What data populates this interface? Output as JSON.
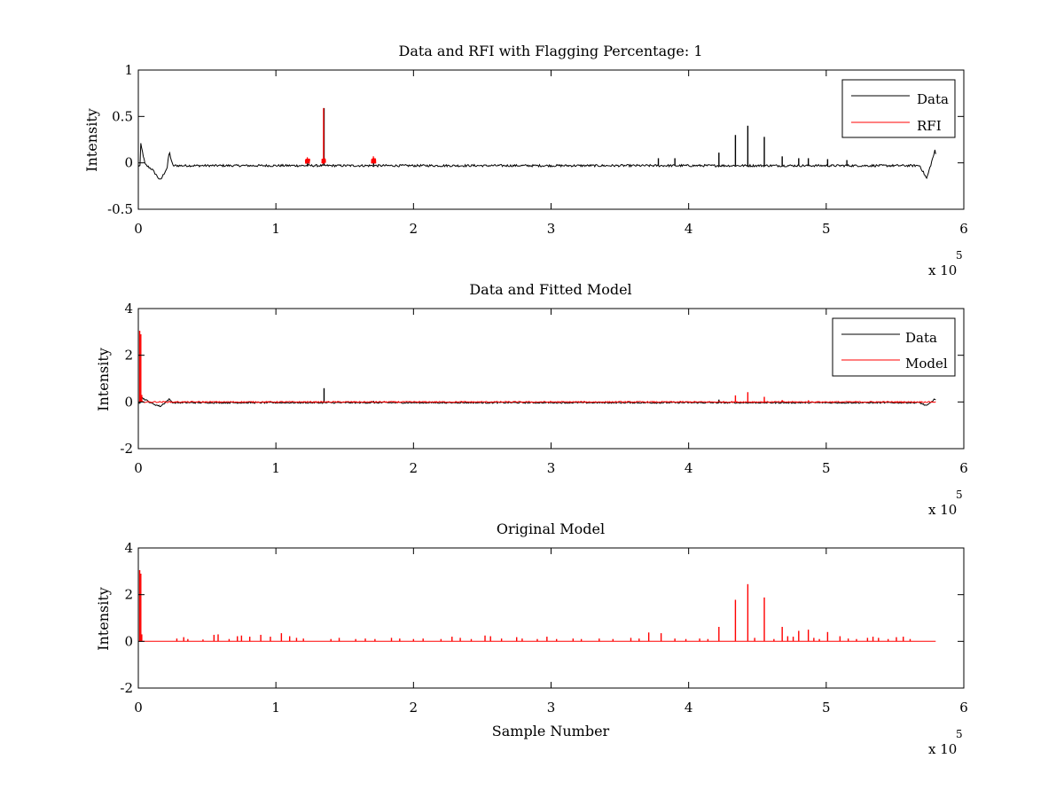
{
  "chart_data": [
    {
      "type": "line",
      "title": "Data and RFI with Flagging Percentage: 1",
      "xlabel": "",
      "ylabel": "Intensity",
      "xlim": [
        0,
        600000
      ],
      "ylim": [
        -0.5,
        1
      ],
      "xticks": [
        0,
        1,
        2,
        3,
        4,
        5,
        6
      ],
      "yticks": [
        -0.5,
        0,
        0.5,
        1
      ],
      "ytick_labels": [
        "-0.5",
        "0",
        "0.5",
        "1"
      ],
      "x_multiplier": "x 10",
      "x_multiplier_exp": "5",
      "legend_position": "top-right",
      "series": [
        {
          "name": "Data",
          "color": "#000000",
          "baseline": -0.03,
          "noise": 0.012,
          "features": [
            {
              "x": 1500,
              "y": 0.22
            },
            {
              "x": 5000,
              "y": -0.02
            },
            {
              "x": 10000,
              "y": -0.07
            },
            {
              "x": 16000,
              "y": -0.19
            },
            {
              "x": 21000,
              "y": -0.05
            },
            {
              "x": 22500,
              "y": 0.12
            },
            {
              "x": 25000,
              "y": -0.03
            }
          ],
          "tail": [
            {
              "x": 568000,
              "y": -0.03
            },
            {
              "x": 573000,
              "y": -0.17
            },
            {
              "x": 579000,
              "y": 0.13
            },
            {
              "x": 581000,
              "y": 0.0
            }
          ],
          "spikes": [
            {
              "x": 135000,
              "y": 0.59
            },
            {
              "x": 123000,
              "y": 0.02
            },
            {
              "x": 171000,
              "y": 0.04
            },
            {
              "x": 378000,
              "y": 0.05
            },
            {
              "x": 390000,
              "y": 0.05
            },
            {
              "x": 422000,
              "y": 0.11
            },
            {
              "x": 434000,
              "y": 0.3
            },
            {
              "x": 443000,
              "y": 0.4
            },
            {
              "x": 455000,
              "y": 0.28
            },
            {
              "x": 468000,
              "y": 0.07
            },
            {
              "x": 480000,
              "y": 0.05
            },
            {
              "x": 487000,
              "y": 0.05
            },
            {
              "x": 501000,
              "y": 0.04
            },
            {
              "x": 515000,
              "y": 0.03
            }
          ]
        },
        {
          "name": "RFI",
          "color": "#ff0000",
          "segments": [
            {
              "from": 121500,
              "to": 124500,
              "level": 0.02,
              "spike": 0.06
            },
            {
              "from": 133500,
              "to": 136000,
              "level": 0.02,
              "spike": 0.59
            },
            {
              "from": 169500,
              "to": 172500,
              "level": 0.02,
              "spike": 0.07
            }
          ]
        }
      ]
    },
    {
      "type": "line",
      "title": "Data and Fitted Model",
      "xlabel": "",
      "ylabel": "Intensity",
      "xlim": [
        0,
        600000
      ],
      "ylim": [
        -2,
        4
      ],
      "xticks": [
        0,
        1,
        2,
        3,
        4,
        5,
        6
      ],
      "yticks": [
        -2,
        0,
        2,
        4
      ],
      "ytick_labels": [
        "-2",
        "0",
        "2",
        "4"
      ],
      "x_multiplier": "x 10",
      "x_multiplier_exp": "5",
      "legend_position": "top-right",
      "series": [
        {
          "name": "Data",
          "color": "#000000",
          "baseline": -0.03,
          "noise": 0.03,
          "features": [
            {
              "x": 1500,
              "y": 0.22
            },
            {
              "x": 10000,
              "y": -0.07
            },
            {
              "x": 16000,
              "y": -0.19
            },
            {
              "x": 22500,
              "y": 0.12
            },
            {
              "x": 25000,
              "y": -0.03
            }
          ],
          "tail": [
            {
              "x": 568000,
              "y": -0.03
            },
            {
              "x": 573000,
              "y": -0.17
            },
            {
              "x": 579000,
              "y": 0.13
            },
            {
              "x": 581000,
              "y": 0.0
            }
          ],
          "spikes": [
            {
              "x": 135000,
              "y": 0.59
            },
            {
              "x": 171000,
              "y": 0.05
            },
            {
              "x": 422000,
              "y": 0.1
            }
          ]
        },
        {
          "name": "Model",
          "color": "#ff0000",
          "baseline": 0.0,
          "noise": 0.025,
          "spikes": [
            {
              "x": 1000,
              "y": 3.05
            },
            {
              "x": 1800,
              "y": 2.9
            },
            {
              "x": 2500,
              "y": 0.3
            },
            {
              "x": 434000,
              "y": 0.28
            },
            {
              "x": 443000,
              "y": 0.42
            },
            {
              "x": 455000,
              "y": 0.22
            },
            {
              "x": 468000,
              "y": 0.08
            },
            {
              "x": 487000,
              "y": 0.07
            }
          ]
        }
      ]
    },
    {
      "type": "line",
      "title": "Original Model",
      "xlabel": "Sample Number",
      "ylabel": "Intensity",
      "xlim": [
        0,
        600000
      ],
      "ylim": [
        -2,
        4
      ],
      "xticks": [
        0,
        1,
        2,
        3,
        4,
        5,
        6
      ],
      "yticks": [
        -2,
        0,
        2,
        4
      ],
      "ytick_labels": [
        "-2",
        "0",
        "2",
        "4"
      ],
      "x_multiplier": "x 10",
      "x_multiplier_exp": "5",
      "series": [
        {
          "color": "#ff0000",
          "baseline": 0.0,
          "noise": 0,
          "xend": 580000,
          "spikes": [
            {
              "x": 1000,
              "y": 3.05
            },
            {
              "x": 1800,
              "y": 2.9
            },
            {
              "x": 2500,
              "y": 0.3
            },
            {
              "x": 28000,
              "y": 0.12
            },
            {
              "x": 33000,
              "y": 0.18
            },
            {
              "x": 36000,
              "y": 0.1
            },
            {
              "x": 47000,
              "y": 0.08
            },
            {
              "x": 55000,
              "y": 0.28
            },
            {
              "x": 58000,
              "y": 0.3
            },
            {
              "x": 66000,
              "y": 0.1
            },
            {
              "x": 72000,
              "y": 0.22
            },
            {
              "x": 75000,
              "y": 0.25
            },
            {
              "x": 81000,
              "y": 0.2
            },
            {
              "x": 89000,
              "y": 0.28
            },
            {
              "x": 96000,
              "y": 0.2
            },
            {
              "x": 104000,
              "y": 0.35
            },
            {
              "x": 110000,
              "y": 0.22
            },
            {
              "x": 115000,
              "y": 0.15
            },
            {
              "x": 120000,
              "y": 0.12
            },
            {
              "x": 140000,
              "y": 0.1
            },
            {
              "x": 146000,
              "y": 0.15
            },
            {
              "x": 158000,
              "y": 0.1
            },
            {
              "x": 165000,
              "y": 0.12
            },
            {
              "x": 172000,
              "y": 0.1
            },
            {
              "x": 184000,
              "y": 0.15
            },
            {
              "x": 190000,
              "y": 0.12
            },
            {
              "x": 200000,
              "y": 0.1
            },
            {
              "x": 207000,
              "y": 0.12
            },
            {
              "x": 220000,
              "y": 0.1
            },
            {
              "x": 228000,
              "y": 0.2
            },
            {
              "x": 234000,
              "y": 0.15
            },
            {
              "x": 242000,
              "y": 0.1
            },
            {
              "x": 252000,
              "y": 0.25
            },
            {
              "x": 256000,
              "y": 0.22
            },
            {
              "x": 264000,
              "y": 0.12
            },
            {
              "x": 275000,
              "y": 0.18
            },
            {
              "x": 279000,
              "y": 0.12
            },
            {
              "x": 290000,
              "y": 0.1
            },
            {
              "x": 297000,
              "y": 0.2
            },
            {
              "x": 304000,
              "y": 0.1
            },
            {
              "x": 316000,
              "y": 0.12
            },
            {
              "x": 322000,
              "y": 0.1
            },
            {
              "x": 335000,
              "y": 0.12
            },
            {
              "x": 345000,
              "y": 0.1
            },
            {
              "x": 358000,
              "y": 0.15
            },
            {
              "x": 364000,
              "y": 0.12
            },
            {
              "x": 371000,
              "y": 0.38
            },
            {
              "x": 380000,
              "y": 0.35
            },
            {
              "x": 390000,
              "y": 0.12
            },
            {
              "x": 398000,
              "y": 0.1
            },
            {
              "x": 408000,
              "y": 0.12
            },
            {
              "x": 414000,
              "y": 0.1
            },
            {
              "x": 422000,
              "y": 0.62
            },
            {
              "x": 434000,
              "y": 1.78
            },
            {
              "x": 443000,
              "y": 2.45
            },
            {
              "x": 448000,
              "y": 0.15
            },
            {
              "x": 455000,
              "y": 1.88
            },
            {
              "x": 462000,
              "y": 0.1
            },
            {
              "x": 468000,
              "y": 0.62
            },
            {
              "x": 472000,
              "y": 0.22
            },
            {
              "x": 476000,
              "y": 0.2
            },
            {
              "x": 480000,
              "y": 0.45
            },
            {
              "x": 487000,
              "y": 0.5
            },
            {
              "x": 491000,
              "y": 0.15
            },
            {
              "x": 495000,
              "y": 0.1
            },
            {
              "x": 501000,
              "y": 0.4
            },
            {
              "x": 510000,
              "y": 0.22
            },
            {
              "x": 516000,
              "y": 0.12
            },
            {
              "x": 522000,
              "y": 0.1
            },
            {
              "x": 530000,
              "y": 0.15
            },
            {
              "x": 534000,
              "y": 0.2
            },
            {
              "x": 538000,
              "y": 0.15
            },
            {
              "x": 545000,
              "y": 0.1
            },
            {
              "x": 551000,
              "y": 0.18
            },
            {
              "x": 556000,
              "y": 0.2
            },
            {
              "x": 561000,
              "y": 0.1
            }
          ]
        }
      ]
    }
  ]
}
